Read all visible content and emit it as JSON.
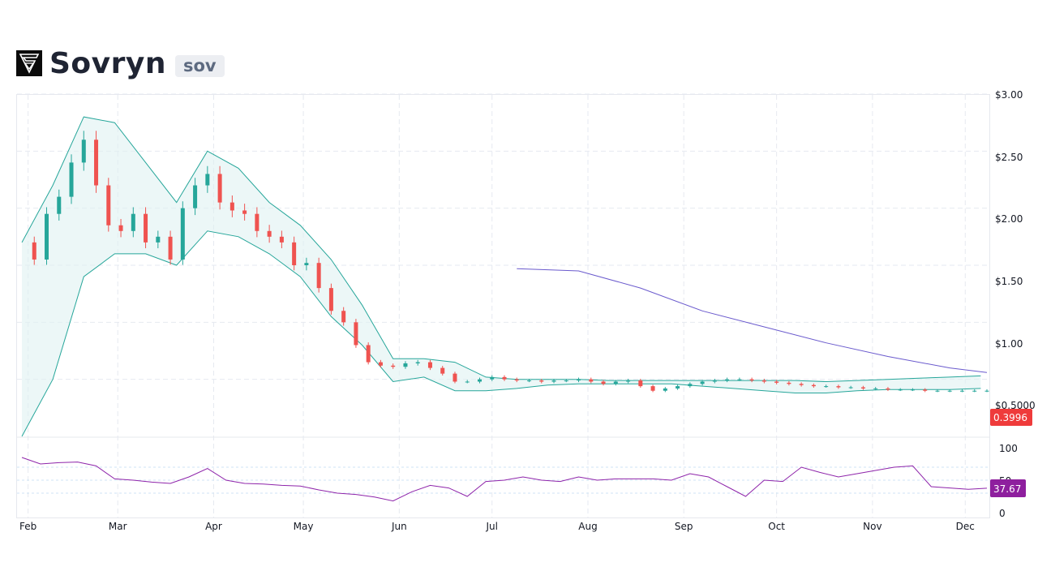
{
  "header": {
    "title": "Sovryn",
    "ticker": "sov"
  },
  "price_axis_labels": [
    "$3.00",
    "$2.50",
    "$2.00",
    "$1.50",
    "$1.00",
    "$0.5000"
  ],
  "rsi_axis_labels": [
    "100",
    "50",
    "0"
  ],
  "last_price_label": "0.3996",
  "last_rsi_label": "37.67",
  "colors": {
    "up": "#26a69a",
    "down": "#ef5350",
    "bollinger": "#26a69a",
    "bollinger_fill": "#e0f2f1",
    "ma": "#6a5acd",
    "rsi": "#8e24aa",
    "price_tag": "#ef3b3b",
    "rsi_tag": "#8e1f9e"
  },
  "chart_data": {
    "type": "line",
    "title": "",
    "x_ticks": [
      "Feb",
      "Mar",
      "Apr",
      "May",
      "Jun",
      "Jul",
      "Aug",
      "Sep",
      "Oct",
      "Nov",
      "Dec"
    ],
    "price_ylim": [
      0,
      3.0
    ],
    "rsi_ylim": [
      0,
      100
    ],
    "series": [
      {
        "name": "",
        "kind": "price_close",
        "x": [
          0,
          4,
          8,
          12,
          16,
          20,
          24,
          28,
          32,
          36,
          40,
          44,
          48,
          52,
          56,
          60,
          64,
          68,
          72,
          76,
          80,
          84,
          88,
          92,
          96,
          100,
          104,
          108,
          112,
          116,
          120,
          124,
          128,
          132,
          136,
          140,
          144,
          148,
          152,
          156,
          160,
          164,
          168,
          172,
          176,
          180,
          184,
          188,
          192,
          196,
          200,
          204,
          208,
          212,
          216,
          220,
          224,
          228,
          232,
          236,
          240,
          244,
          248,
          252,
          256,
          260,
          264,
          268,
          272,
          276,
          280,
          284,
          288,
          292,
          296,
          300,
          304,
          308,
          312
        ],
        "values": [
          1.7,
          1.55,
          1.95,
          2.1,
          2.4,
          2.6,
          2.2,
          1.85,
          1.8,
          1.95,
          1.7,
          1.75,
          1.55,
          2.0,
          2.2,
          2.3,
          2.05,
          1.98,
          1.95,
          1.8,
          1.75,
          1.7,
          1.5,
          1.52,
          1.3,
          1.1,
          1.0,
          0.8,
          0.65,
          0.62,
          0.61,
          0.64,
          0.65,
          0.6,
          0.55,
          0.48,
          0.48,
          0.5,
          0.52,
          0.5,
          0.49,
          0.49,
          0.48,
          0.49,
          0.49,
          0.5,
          0.48,
          0.46,
          0.48,
          0.49,
          0.44,
          0.4,
          0.42,
          0.44,
          0.46,
          0.48,
          0.49,
          0.5,
          0.5,
          0.49,
          0.48,
          0.47,
          0.46,
          0.45,
          0.44,
          0.44,
          0.43,
          0.43,
          0.42,
          0.42,
          0.41,
          0.41,
          0.41,
          0.4,
          0.4,
          0.4,
          0.4,
          0.4,
          0.4
        ]
      },
      {
        "name": "",
        "kind": "bollinger_upper",
        "x": [
          0,
          10,
          20,
          30,
          40,
          50,
          60,
          70,
          80,
          90,
          100,
          110,
          120,
          130,
          140,
          150,
          160,
          170,
          180,
          190,
          200,
          210,
          220,
          230,
          240,
          250,
          260,
          270,
          280,
          290,
          300,
          310
        ],
        "values": [
          1.7,
          2.2,
          2.8,
          2.75,
          2.4,
          2.05,
          2.5,
          2.35,
          2.05,
          1.85,
          1.55,
          1.15,
          0.68,
          0.68,
          0.65,
          0.52,
          0.5,
          0.5,
          0.5,
          0.49,
          0.49,
          0.49,
          0.49,
          0.49,
          0.49,
          0.49,
          0.48,
          0.49,
          0.5,
          0.51,
          0.52,
          0.53
        ]
      },
      {
        "name": "",
        "kind": "bollinger_lower",
        "x": [
          0,
          10,
          20,
          30,
          40,
          50,
          60,
          70,
          80,
          90,
          100,
          110,
          120,
          130,
          140,
          150,
          160,
          170,
          180,
          190,
          200,
          210,
          220,
          230,
          240,
          250,
          260,
          270,
          280,
          290,
          300,
          310
        ],
        "values": [
          0.0,
          0.5,
          1.4,
          1.6,
          1.6,
          1.5,
          1.8,
          1.75,
          1.6,
          1.4,
          1.05,
          0.8,
          0.48,
          0.52,
          0.4,
          0.4,
          0.42,
          0.45,
          0.46,
          0.46,
          0.46,
          0.46,
          0.44,
          0.42,
          0.4,
          0.38,
          0.38,
          0.4,
          0.41,
          0.41,
          0.41,
          0.42
        ]
      },
      {
        "name": "",
        "kind": "ma_long",
        "x": [
          160,
          180,
          200,
          220,
          240,
          260,
          280,
          300,
          312
        ],
        "values": [
          1.47,
          1.45,
          1.3,
          1.1,
          0.96,
          0.82,
          0.7,
          0.6,
          0.56
        ]
      },
      {
        "name": "",
        "kind": "rsi",
        "x": [
          0,
          6,
          12,
          18,
          24,
          30,
          36,
          42,
          48,
          54,
          60,
          66,
          72,
          78,
          84,
          90,
          96,
          102,
          108,
          114,
          120,
          126,
          132,
          138,
          144,
          150,
          156,
          162,
          168,
          174,
          180,
          186,
          192,
          198,
          204,
          210,
          216,
          222,
          228,
          234,
          240,
          246,
          252,
          258,
          264,
          270,
          276,
          282,
          288,
          294,
          300,
          306,
          312
        ],
        "values": [
          85,
          75,
          77,
          78,
          72,
          52,
          50,
          47,
          45,
          55,
          68,
          50,
          45,
          44,
          42,
          41,
          35,
          30,
          28,
          24,
          18,
          32,
          42,
          38,
          25,
          48,
          50,
          55,
          50,
          48,
          55,
          50,
          52,
          52,
          52,
          50,
          60,
          55,
          40,
          25,
          50,
          48,
          70,
          62,
          55,
          60,
          65,
          70,
          72,
          40,
          38,
          36,
          37.67
        ]
      }
    ]
  }
}
